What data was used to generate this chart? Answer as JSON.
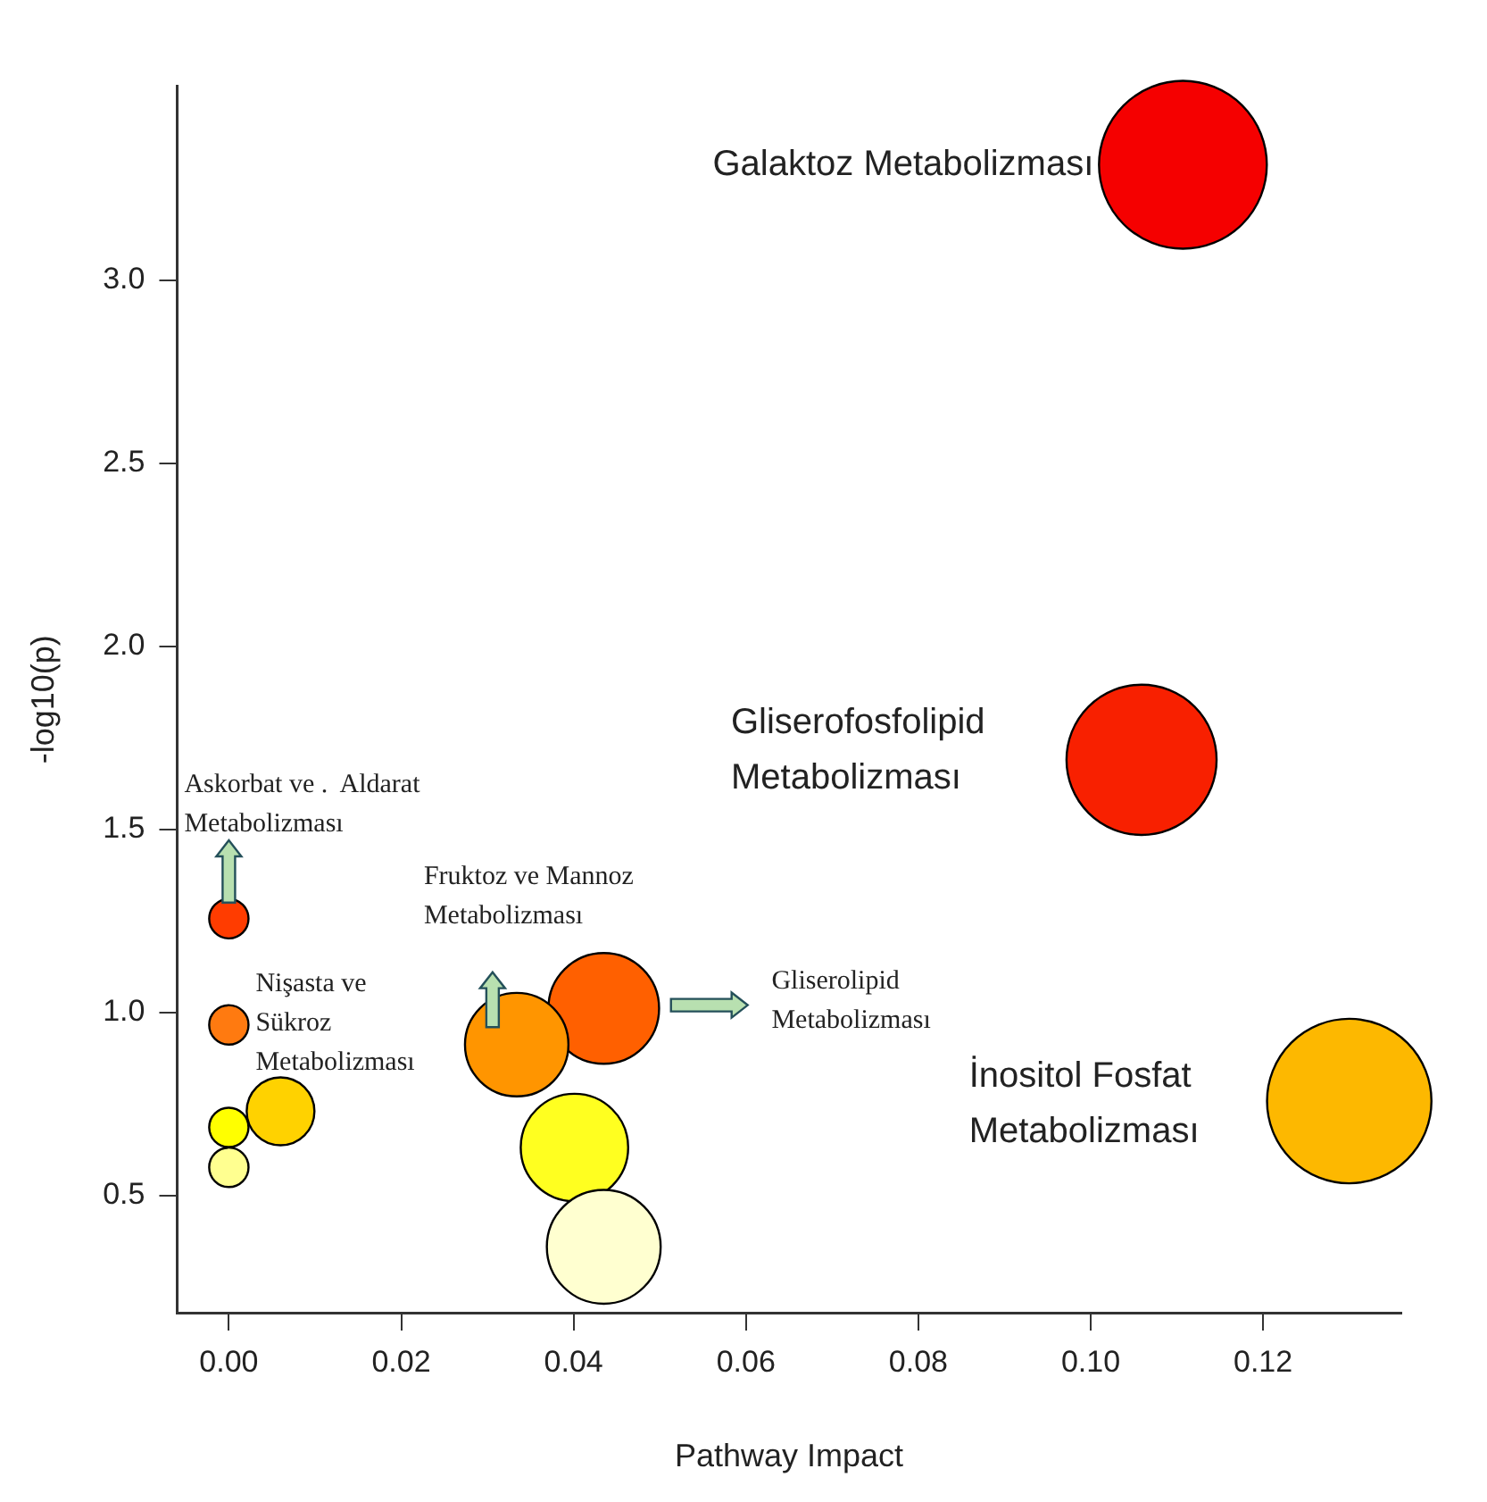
{
  "chart_data": {
    "type": "bubble",
    "xlabel": "Pathway Impact",
    "ylabel": "-log10(p)",
    "x": [
      0.1107,
      0.1059,
      0.13,
      0.0435,
      0.0334,
      0.0401,
      0.0435,
      0,
      0,
      0.006,
      0,
      0
    ],
    "values": [
      3.315,
      1.69,
      0.758,
      1.011,
      0.912,
      0.631,
      0.36,
      1.256,
      0.966,
      0.73,
      0.686,
      0.577
    ],
    "sizes": [
      1,
      0.8,
      0.96,
      0.435,
      0.38,
      0.41,
      0.46,
      0.055,
      0.055,
      0.163,
      0.055,
      0.055
    ],
    "colors": [
      "#f50000",
      "#f82000",
      "#fdb800",
      "#ff6000",
      "#ff9500",
      "#ffff20",
      "#ffffd0",
      "#ff3c00",
      "#ff7a10",
      "#ffd200",
      "#ffff00",
      "#ffff90"
    ],
    "xlim": [
      -0.006,
      0.136
    ],
    "ylim": [
      0.18,
      3.53
    ],
    "xticks": [
      {
        "value": 0,
        "label": "0.00"
      },
      {
        "value": 0.02,
        "label": "0.02"
      },
      {
        "value": 0.04,
        "label": "0.04"
      },
      {
        "value": 0.06,
        "label": "0.06"
      },
      {
        "value": 0.08,
        "label": "0.08"
      },
      {
        "value": 0.1,
        "label": "0.10"
      },
      {
        "value": 0.12,
        "label": "0.12"
      }
    ],
    "yticks": [
      {
        "value": 0.5,
        "label": "0.5"
      },
      {
        "value": 1,
        "label": "1.0"
      },
      {
        "value": 1.5,
        "label": "1.5"
      },
      {
        "value": 2,
        "label": "2.0"
      },
      {
        "value": 2.5,
        "label": "2.5"
      },
      {
        "value": 3,
        "label": "3.0"
      }
    ],
    "grid": false,
    "legend": false,
    "annotations": [
      {
        "text": "Galaktoz Metabolizması",
        "x": 0.1107,
        "y": 3.315
      },
      "Gliserofosfolipid\nMetabolizması",
      "İnositol Fosfat\nMetabolizması",
      "Askorbat ve .  Aldarat\nMetabolizması",
      "Fruktoz ve Mannoz\nMetabolizması",
      "Gliserolipid\nMetabolizması",
      "Nişasta ve\nSükroz\nMetabolizması"
    ]
  }
}
